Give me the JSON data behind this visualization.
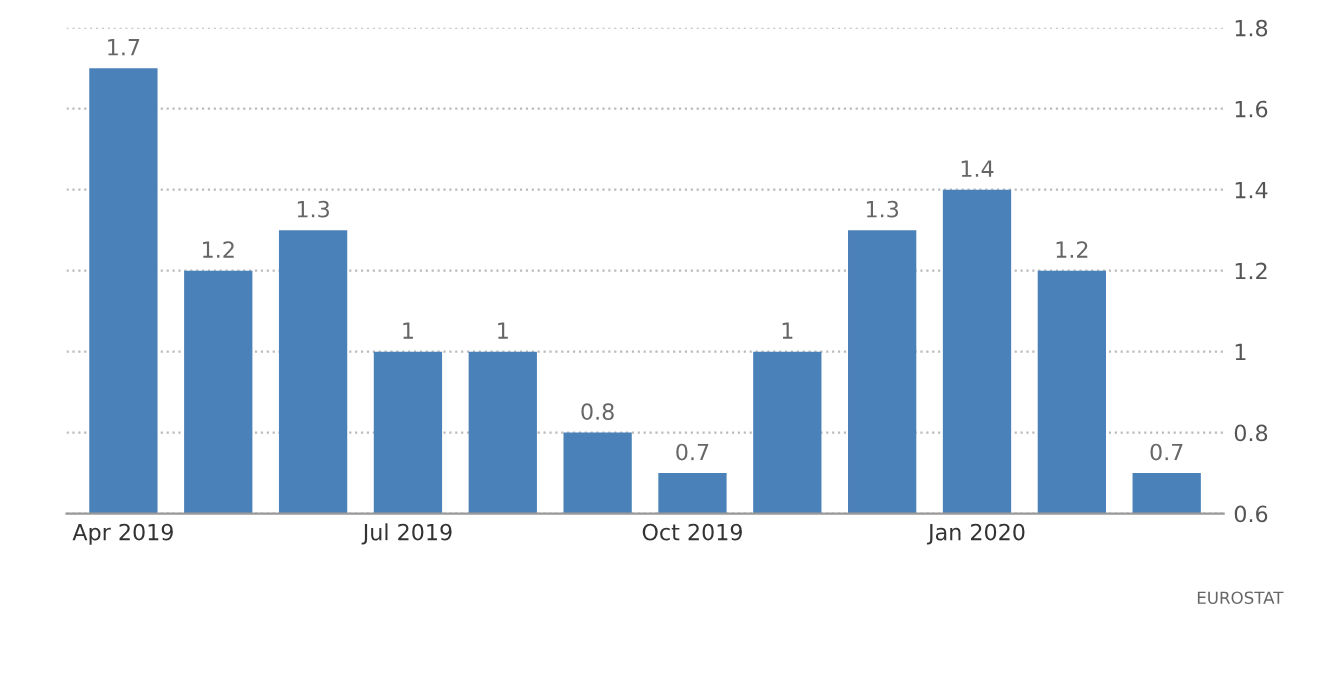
{
  "chart_data": {
    "type": "bar",
    "categories": [
      "Apr 2019",
      null,
      null,
      "Jul 2019",
      null,
      null,
      "Oct 2019",
      null,
      null,
      "Jan 2020",
      null,
      null
    ],
    "values": [
      1.7,
      1.2,
      1.3,
      1,
      1,
      0.8,
      0.7,
      1,
      1.3,
      1.4,
      1.2,
      0.7
    ],
    "color": "#4a81b8",
    "ylim": [
      0.6,
      1.8
    ],
    "yticks": [
      0.6,
      0.8,
      1,
      1.2,
      1.4,
      1.6,
      1.8
    ],
    "grid": "y",
    "data_labels": true,
    "annotations": [
      "EUROSTAT"
    ]
  }
}
